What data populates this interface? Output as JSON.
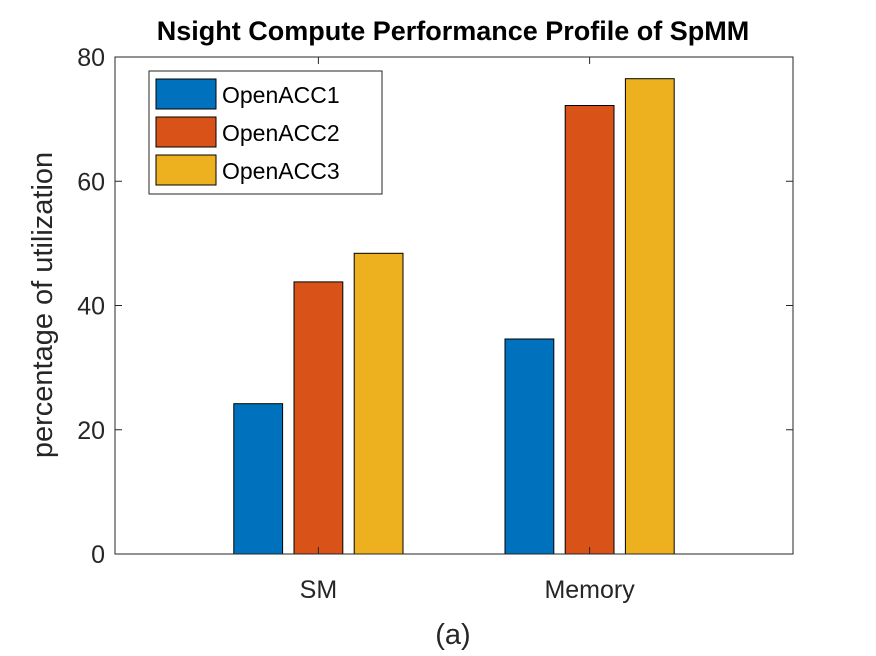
{
  "chart_data": {
    "type": "bar",
    "title": "Nsight Compute Performance Profile of SpMM",
    "xlabel": "",
    "ylabel": "percentage of utilization",
    "caption": "(a)",
    "categories": [
      "SM",
      "Memory"
    ],
    "series": [
      {
        "name": "OpenACC1",
        "color": "#0072BD",
        "values": [
          24.2,
          34.6
        ]
      },
      {
        "name": "OpenACC2",
        "color": "#D95319",
        "values": [
          43.8,
          72.2
        ]
      },
      {
        "name": "OpenACC3",
        "color": "#EDB120",
        "values": [
          48.4,
          76.5
        ]
      }
    ],
    "ylim": [
      0,
      80
    ],
    "yticks": [
      0,
      20,
      40,
      60,
      80
    ],
    "grid": false,
    "legend_position": "top-left"
  }
}
